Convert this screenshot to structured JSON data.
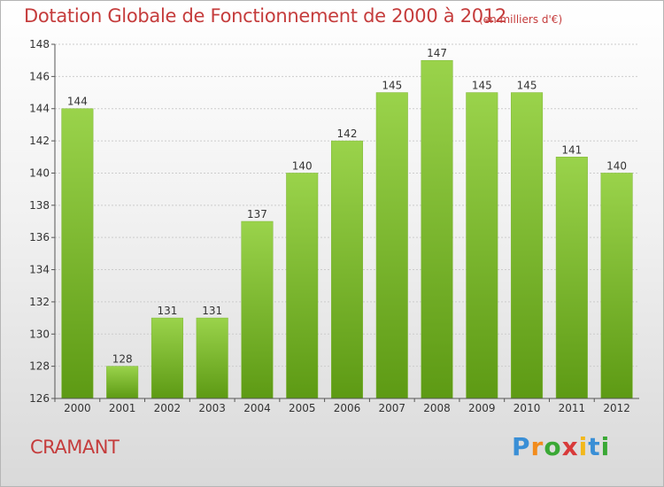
{
  "header": {
    "title": "Dotation Globale de Fonctionnement de 2000 à 2012",
    "subtitle": "(en milliers d'€)"
  },
  "footer": {
    "commune": "CRAMANT",
    "logo_letters": [
      "P",
      "r",
      "o",
      "x",
      "i",
      "t",
      "i"
    ],
    "logo_colors": [
      "#3a8fd6",
      "#f28c1c",
      "#3aa835",
      "#d83a3a",
      "#f2b81c",
      "#3a8fd6",
      "#3aa835"
    ]
  },
  "colors": {
    "bar_top": "#9ad34b",
    "bar_bottom": "#5d9a14",
    "accent": "#c53c3c",
    "grid": "#cccccc",
    "axis": "#555555"
  },
  "chart_data": {
    "type": "bar",
    "title": "Dotation Globale de Fonctionnement de 2000 à 2012",
    "subtitle": "(en milliers d'€)",
    "categories": [
      "2000",
      "2001",
      "2002",
      "2003",
      "2004",
      "2005",
      "2006",
      "2007",
      "2008",
      "2009",
      "2010",
      "2011",
      "2012"
    ],
    "values": [
      144,
      128,
      131,
      131,
      137,
      140,
      142,
      145,
      147,
      145,
      145,
      141,
      140
    ],
    "ylim": [
      126,
      148
    ],
    "yticks": [
      126,
      128,
      130,
      132,
      134,
      136,
      138,
      140,
      142,
      144,
      146,
      148
    ],
    "grid": true,
    "xlabel": "",
    "ylabel": ""
  }
}
